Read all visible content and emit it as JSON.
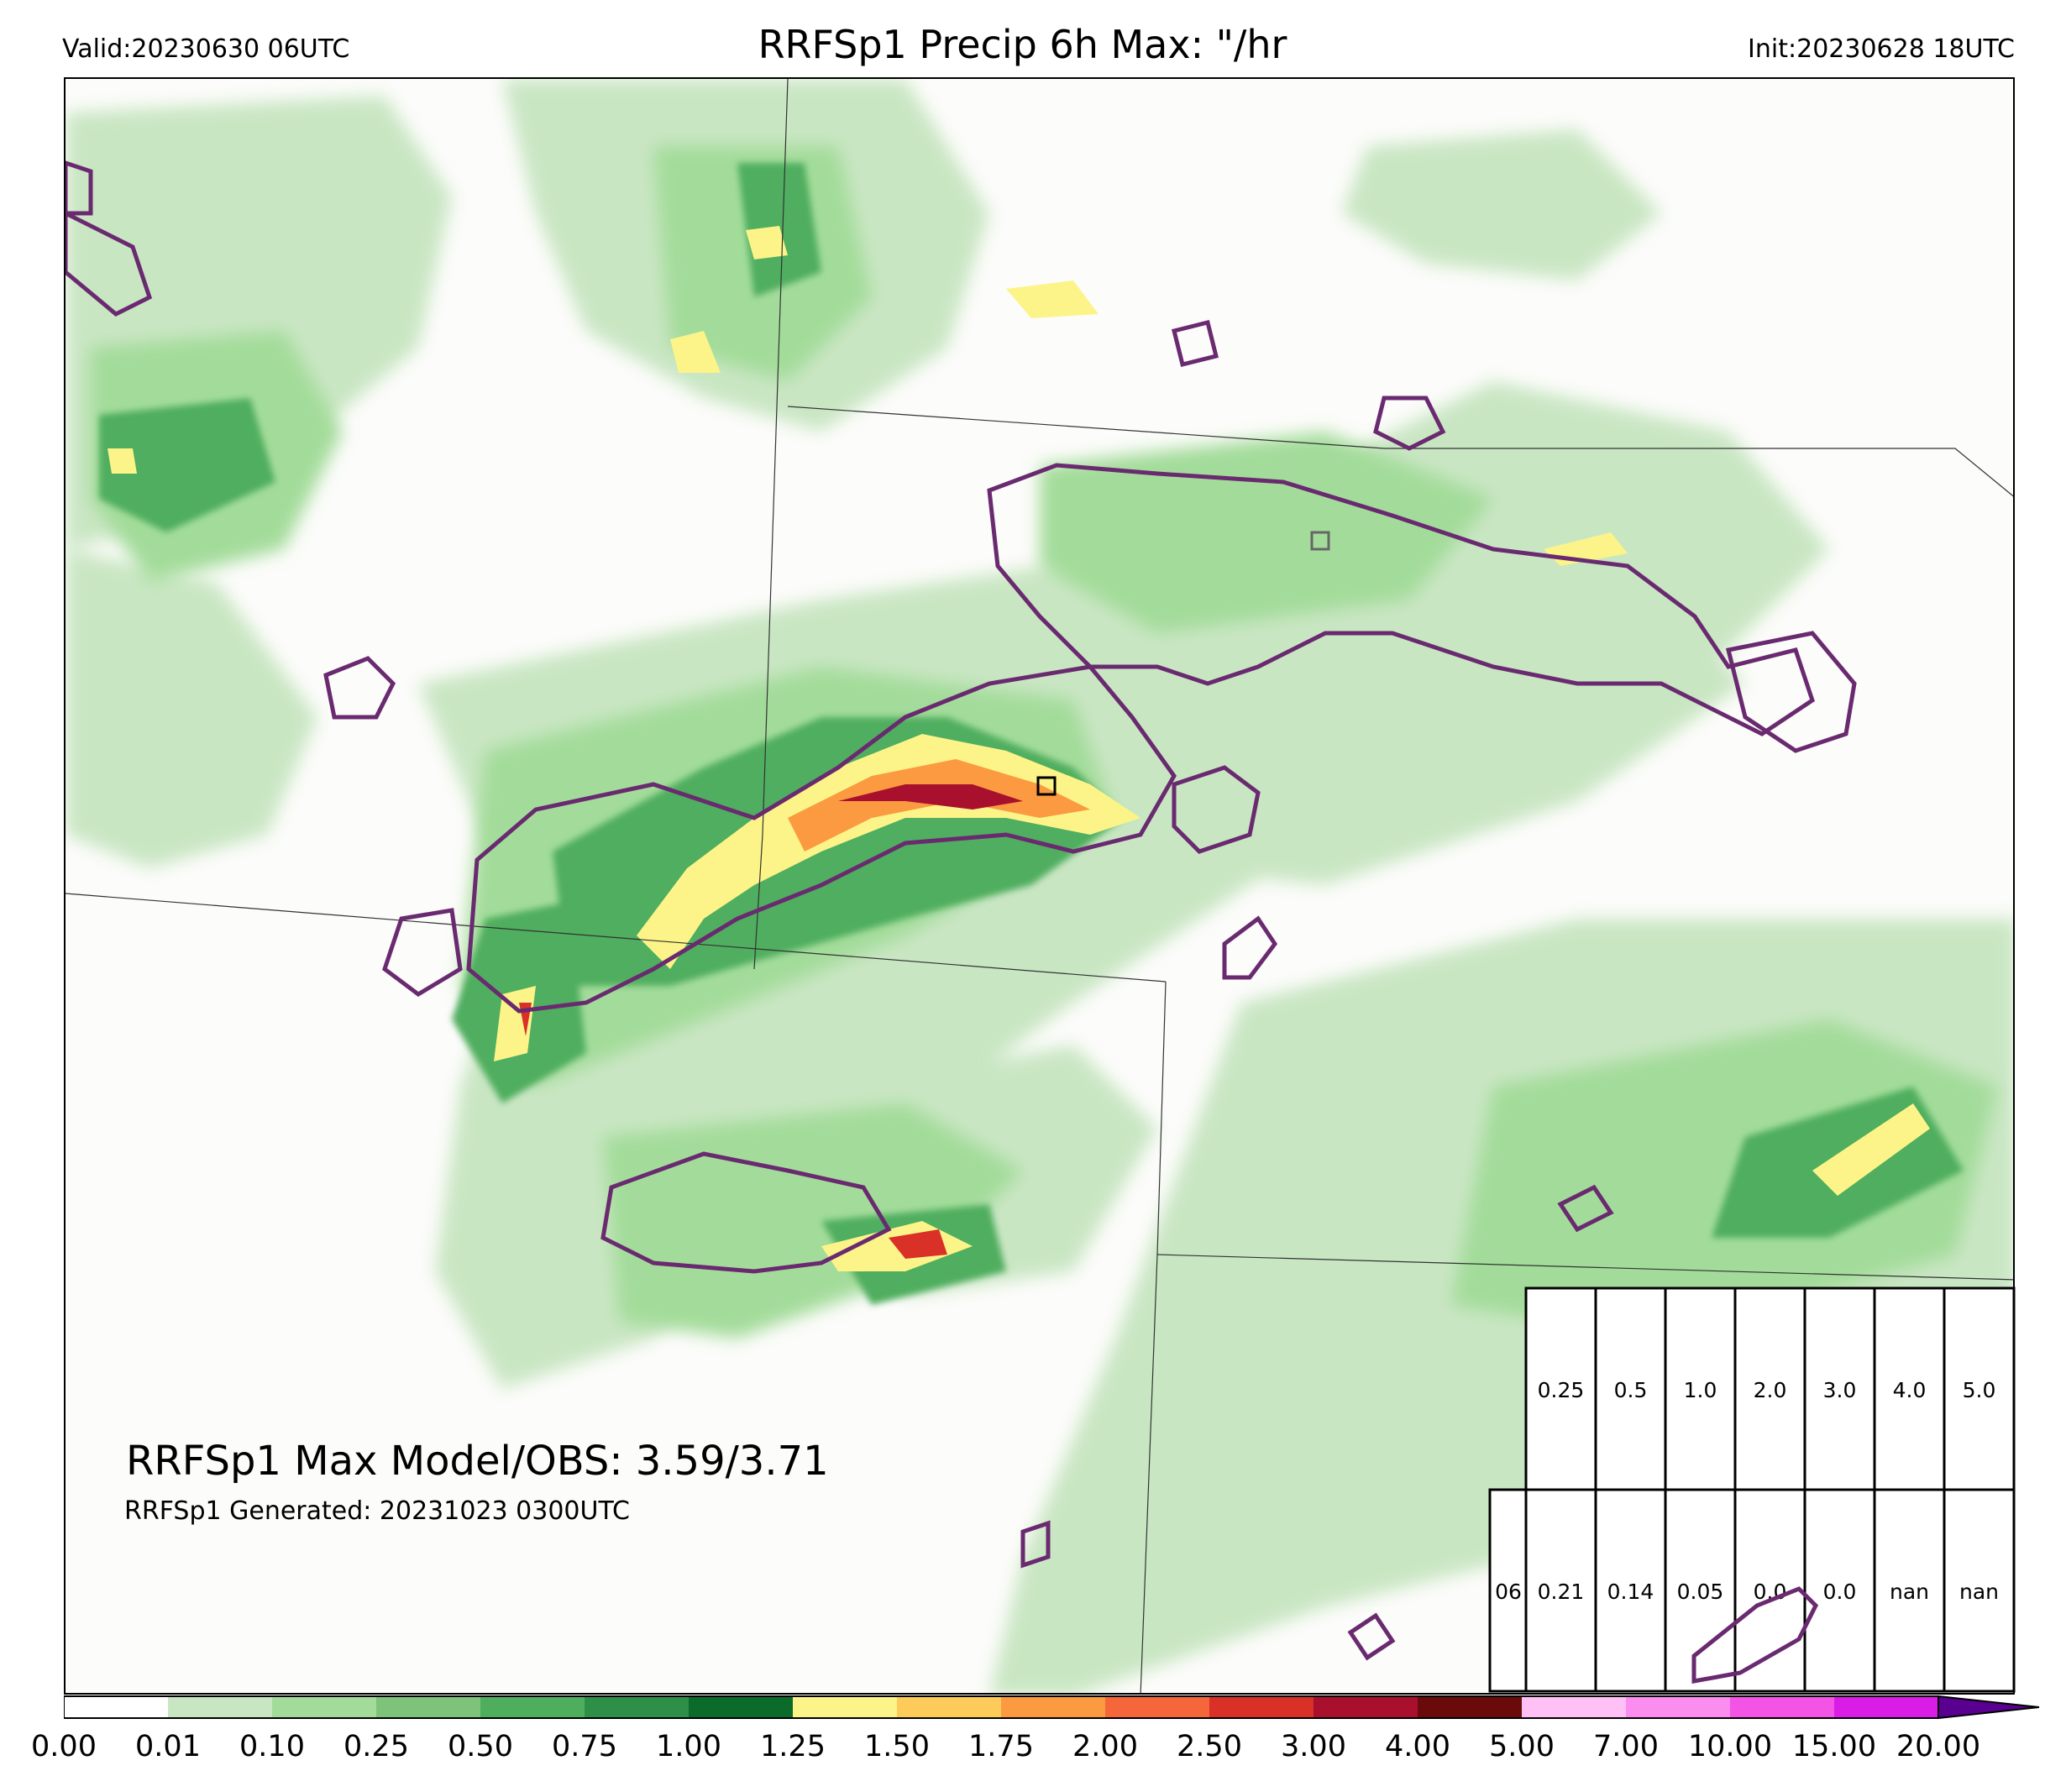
{
  "header": {
    "valid": "Valid:20230630 06UTC",
    "title": "RRFSp1 Precip 6h Max: \"/hr",
    "init": "Init:20230628 18UTC"
  },
  "annotation": {
    "max_line": "RRFSp1 Max Model/OBS: 3.59/3.71",
    "generated": "RRFSp1 Generated: 20231023 0300UTC"
  },
  "stats_table": {
    "row1": [
      "0.25",
      "0.5",
      "1.0",
      "2.0",
      "3.0",
      "4.0",
      "5.0"
    ],
    "row2_label": "06",
    "row2": [
      "0.21",
      "0.14",
      "0.05",
      "0.0",
      "0.0",
      "nan",
      "nan"
    ]
  },
  "colorbar": {
    "levels": [
      "0.00",
      "0.01",
      "0.10",
      "0.25",
      "0.50",
      "0.75",
      "1.00",
      "1.25",
      "1.50",
      "1.75",
      "2.00",
      "2.50",
      "3.00",
      "4.00",
      "5.00",
      "7.00",
      "10.00",
      "15.00",
      "20.00"
    ],
    "colors": [
      "#ffffff",
      "#c9e6c3",
      "#a3dc9a",
      "#7ec37a",
      "#4fae5e",
      "#2e8f48",
      "#0b6b2a",
      "#fcf488",
      "#fccb5a",
      "#fb9a40",
      "#f5673a",
      "#d93028",
      "#a8102e",
      "#6a0a0a",
      "#ffc0f5",
      "#fb8cf0",
      "#f454e6",
      "#d91ce6",
      "#8a10c8"
    ],
    "extend_color": "#5a0090"
  },
  "map_colors": {
    "background": "#fcfcfa",
    "obs_contour": "#6a2a70",
    "borders": "#333333"
  }
}
